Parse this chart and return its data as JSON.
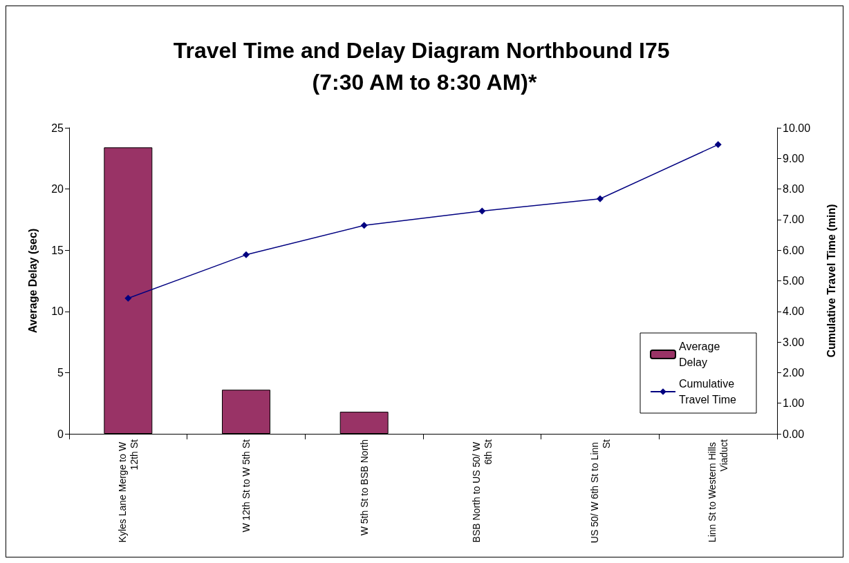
{
  "chart_data": {
    "type": "bar",
    "title": "Travel Time and Delay Diagram Northbound I75 (7:30 AM to 8:30 AM)*",
    "ylabel": "Average Delay (sec)",
    "y2label": "Cumulative Travel Time (min)",
    "categories": [
      "Kyles Lane Merge to W 12th St",
      "W 12th St to W 5th St",
      "W 5th St to BSB North",
      "BSB North to US 50/ W 6th St",
      "US 50/ W 6th St to Linn St",
      "Linn St to Western Hills Viaduct"
    ],
    "series": [
      {
        "name": "Average Delay",
        "color": "#993366",
        "values": [
          23.4,
          3.6,
          1.8,
          0,
          0,
          0
        ]
      },
      {
        "name": "Cumulative Travel Time",
        "type": "line",
        "axis": "y2",
        "color": "#000080",
        "marker": "diamond",
        "values": [
          4.43,
          5.85,
          6.81,
          7.28,
          7.68,
          9.45
        ]
      }
    ],
    "ylim": [
      0,
      25
    ],
    "yticks": [
      0,
      5,
      10,
      15,
      20,
      25
    ],
    "y2lim": [
      0,
      10
    ],
    "y2ticks": [
      {
        "value": 0,
        "label": "0.00"
      },
      {
        "value": 1,
        "label": "1.00"
      },
      {
        "value": 2,
        "label": "2.00"
      },
      {
        "value": 3,
        "label": "3.00"
      },
      {
        "value": 4,
        "label": "4.00"
      },
      {
        "value": 5,
        "label": "5.00"
      },
      {
        "value": 6,
        "label": "6.00"
      },
      {
        "value": 7,
        "label": "7.00"
      },
      {
        "value": 8,
        "label": "8.00"
      },
      {
        "value": 9,
        "label": "9.00"
      },
      {
        "value": 10,
        "label": "10.00"
      }
    ],
    "grid": false,
    "legend": "bottom right"
  }
}
